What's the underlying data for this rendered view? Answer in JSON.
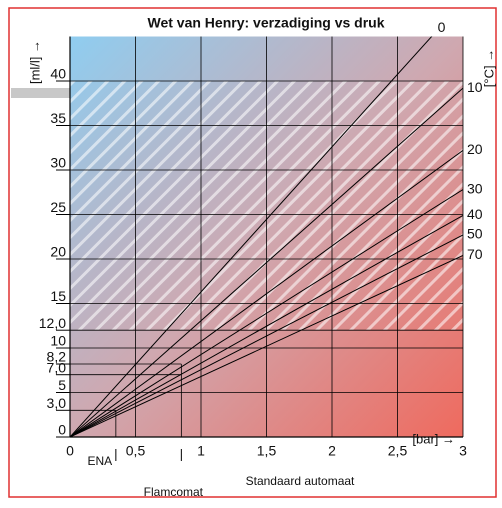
{
  "chart_data": {
    "type": "line",
    "title": "Wet van Henry: verzadiging vs druk",
    "x_label": "[bar] →",
    "y_label": "[ml/l] →",
    "series_label": "[°C] →",
    "xlim": [
      0,
      3
    ],
    "ylim": [
      0,
      45
    ],
    "xticks": [
      0,
      {
        "value": 0.5,
        "label": "0,5"
      },
      1,
      {
        "value": 1.5,
        "label": "1,5"
      },
      2,
      {
        "value": 2.5,
        "label": "2,5"
      },
      3
    ],
    "yticks": [
      0,
      {
        "value": 3.0,
        "label": "3,0"
      },
      5,
      {
        "value": 7.0,
        "label": "7,0"
      },
      {
        "value": 8.2,
        "label": "8,2"
      },
      10,
      {
        "value": 12.0,
        "label": "12,0"
      },
      15,
      20,
      25,
      30,
      35,
      40
    ],
    "x": [
      0,
      3
    ],
    "series": [
      {
        "name": "0",
        "color": "#000000",
        "values": [
          0,
          48.9
        ]
      },
      {
        "name": "10",
        "color": "#000000",
        "values": [
          0,
          39.2
        ]
      },
      {
        "name": "20",
        "color": "#000000",
        "values": [
          0,
          32.2
        ]
      },
      {
        "name": "30",
        "color": "#000000",
        "values": [
          0,
          27.8
        ]
      },
      {
        "name": "40",
        "color": "#000000",
        "values": [
          0,
          24.9
        ]
      },
      {
        "name": "50",
        "color": "#000000",
        "values": [
          0,
          22.7
        ]
      },
      {
        "name": "70",
        "color": "#000000",
        "values": [
          0,
          20.4
        ]
      }
    ],
    "markers": [
      {
        "label": "ENA",
        "x": 0.35,
        "levels": [
          3.0
        ]
      },
      {
        "label": "Flamcomat",
        "x": 0.85,
        "levels": [
          7.0,
          8.2
        ]
      }
    ],
    "annotations": [
      "Standaard automaat"
    ],
    "hatch_range": [
      12.0,
      40
    ],
    "grid": true
  }
}
